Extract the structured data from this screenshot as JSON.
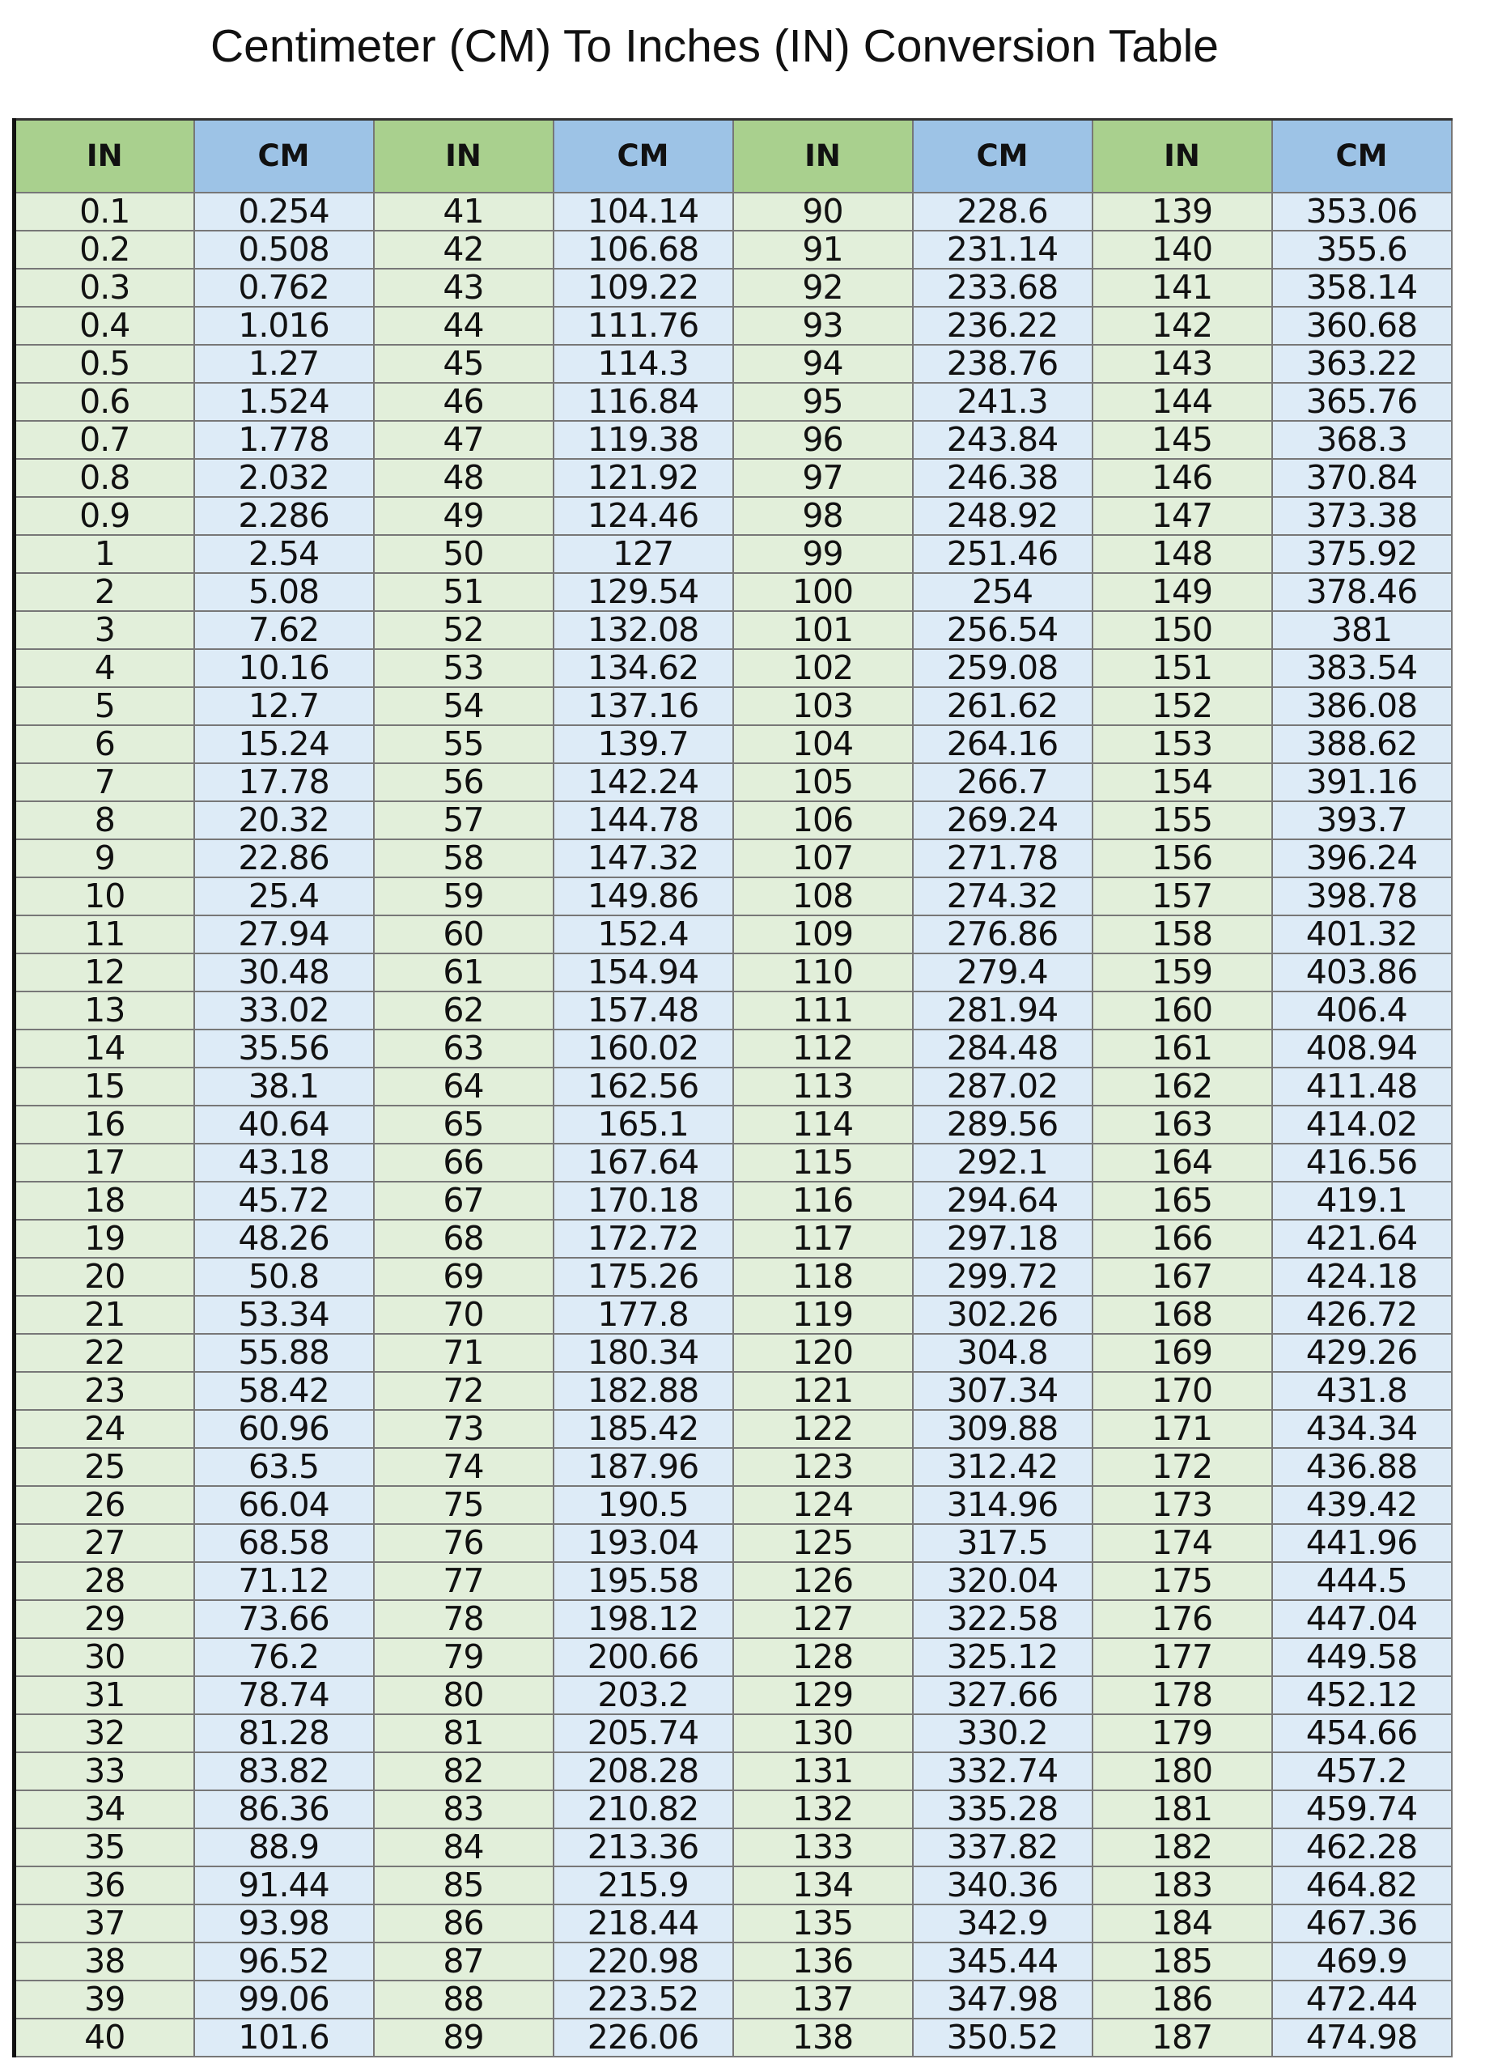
{
  "title": "Centimeter (CM)  To Inches (IN) Conversion Table",
  "headers": {
    "in": "IN",
    "cm": "CM"
  },
  "colors": {
    "in_header": "#a9d08e",
    "cm_header": "#9dc3e6",
    "in_cell": "#e2efda",
    "cm_cell": "#ddebf7"
  },
  "groups": [
    {
      "in": [
        "0.1",
        "0.2",
        "0.3",
        "0.4",
        "0.5",
        "0.6",
        "0.7",
        "0.8",
        "0.9",
        "1",
        "2",
        "3",
        "4",
        "5",
        "6",
        "7",
        "8",
        "9",
        "10",
        "11",
        "12",
        "13",
        "14",
        "15",
        "16",
        "17",
        "18",
        "19",
        "20",
        "21",
        "22",
        "23",
        "24",
        "25",
        "26",
        "27",
        "28",
        "29",
        "30",
        "31",
        "32",
        "33",
        "34",
        "35",
        "36",
        "37",
        "38",
        "39",
        "40"
      ],
      "cm": [
        "0.254",
        "0.508",
        "0.762",
        "1.016",
        "1.27",
        "1.524",
        "1.778",
        "2.032",
        "2.286",
        "2.54",
        "5.08",
        "7.62",
        "10.16",
        "12.7",
        "15.24",
        "17.78",
        "20.32",
        "22.86",
        "25.4",
        "27.94",
        "30.48",
        "33.02",
        "35.56",
        "38.1",
        "40.64",
        "43.18",
        "45.72",
        "48.26",
        "50.8",
        "53.34",
        "55.88",
        "58.42",
        "60.96",
        "63.5",
        "66.04",
        "68.58",
        "71.12",
        "73.66",
        "76.2",
        "78.74",
        "81.28",
        "83.82",
        "86.36",
        "88.9",
        "91.44",
        "93.98",
        "96.52",
        "99.06",
        "101.6"
      ]
    },
    {
      "in": [
        "41",
        "42",
        "43",
        "44",
        "45",
        "46",
        "47",
        "48",
        "49",
        "50",
        "51",
        "52",
        "53",
        "54",
        "55",
        "56",
        "57",
        "58",
        "59",
        "60",
        "61",
        "62",
        "63",
        "64",
        "65",
        "66",
        "67",
        "68",
        "69",
        "70",
        "71",
        "72",
        "73",
        "74",
        "75",
        "76",
        "77",
        "78",
        "79",
        "80",
        "81",
        "82",
        "83",
        "84",
        "85",
        "86",
        "87",
        "88",
        "89"
      ],
      "cm": [
        "104.14",
        "106.68",
        "109.22",
        "111.76",
        "114.3",
        "116.84",
        "119.38",
        "121.92",
        "124.46",
        "127",
        "129.54",
        "132.08",
        "134.62",
        "137.16",
        "139.7",
        "142.24",
        "144.78",
        "147.32",
        "149.86",
        "152.4",
        "154.94",
        "157.48",
        "160.02",
        "162.56",
        "165.1",
        "167.64",
        "170.18",
        "172.72",
        "175.26",
        "177.8",
        "180.34",
        "182.88",
        "185.42",
        "187.96",
        "190.5",
        "193.04",
        "195.58",
        "198.12",
        "200.66",
        "203.2",
        "205.74",
        "208.28",
        "210.82",
        "213.36",
        "215.9",
        "218.44",
        "220.98",
        "223.52",
        "226.06"
      ]
    },
    {
      "in": [
        "90",
        "91",
        "92",
        "93",
        "94",
        "95",
        "96",
        "97",
        "98",
        "99",
        "100",
        "101",
        "102",
        "103",
        "104",
        "105",
        "106",
        "107",
        "108",
        "109",
        "110",
        "111",
        "112",
        "113",
        "114",
        "115",
        "116",
        "117",
        "118",
        "119",
        "120",
        "121",
        "122",
        "123",
        "124",
        "125",
        "126",
        "127",
        "128",
        "129",
        "130",
        "131",
        "132",
        "133",
        "134",
        "135",
        "136",
        "137",
        "138"
      ],
      "cm": [
        "228.6",
        "231.14",
        "233.68",
        "236.22",
        "238.76",
        "241.3",
        "243.84",
        "246.38",
        "248.92",
        "251.46",
        "254",
        "256.54",
        "259.08",
        "261.62",
        "264.16",
        "266.7",
        "269.24",
        "271.78",
        "274.32",
        "276.86",
        "279.4",
        "281.94",
        "284.48",
        "287.02",
        "289.56",
        "292.1",
        "294.64",
        "297.18",
        "299.72",
        "302.26",
        "304.8",
        "307.34",
        "309.88",
        "312.42",
        "314.96",
        "317.5",
        "320.04",
        "322.58",
        "325.12",
        "327.66",
        "330.2",
        "332.74",
        "335.28",
        "337.82",
        "340.36",
        "342.9",
        "345.44",
        "347.98",
        "350.52"
      ]
    },
    {
      "in": [
        "139",
        "140",
        "141",
        "142",
        "143",
        "144",
        "145",
        "146",
        "147",
        "148",
        "149",
        "150",
        "151",
        "152",
        "153",
        "154",
        "155",
        "156",
        "157",
        "158",
        "159",
        "160",
        "161",
        "162",
        "163",
        "164",
        "165",
        "166",
        "167",
        "168",
        "169",
        "170",
        "171",
        "172",
        "173",
        "174",
        "175",
        "176",
        "177",
        "178",
        "179",
        "180",
        "181",
        "182",
        "183",
        "184",
        "185",
        "186",
        "187"
      ],
      "cm": [
        "353.06",
        "355.6",
        "358.14",
        "360.68",
        "363.22",
        "365.76",
        "368.3",
        "370.84",
        "373.38",
        "375.92",
        "378.46",
        "381",
        "383.54",
        "386.08",
        "388.62",
        "391.16",
        "393.7",
        "396.24",
        "398.78",
        "401.32",
        "403.86",
        "406.4",
        "408.94",
        "411.48",
        "414.02",
        "416.56",
        "419.1",
        "421.64",
        "424.18",
        "426.72",
        "429.26",
        "431.8",
        "434.34",
        "436.88",
        "439.42",
        "441.96",
        "444.5",
        "447.04",
        "449.58",
        "452.12",
        "454.66",
        "457.2",
        "459.74",
        "462.28",
        "464.82",
        "467.36",
        "469.9",
        "472.44",
        "474.98"
      ]
    }
  ]
}
